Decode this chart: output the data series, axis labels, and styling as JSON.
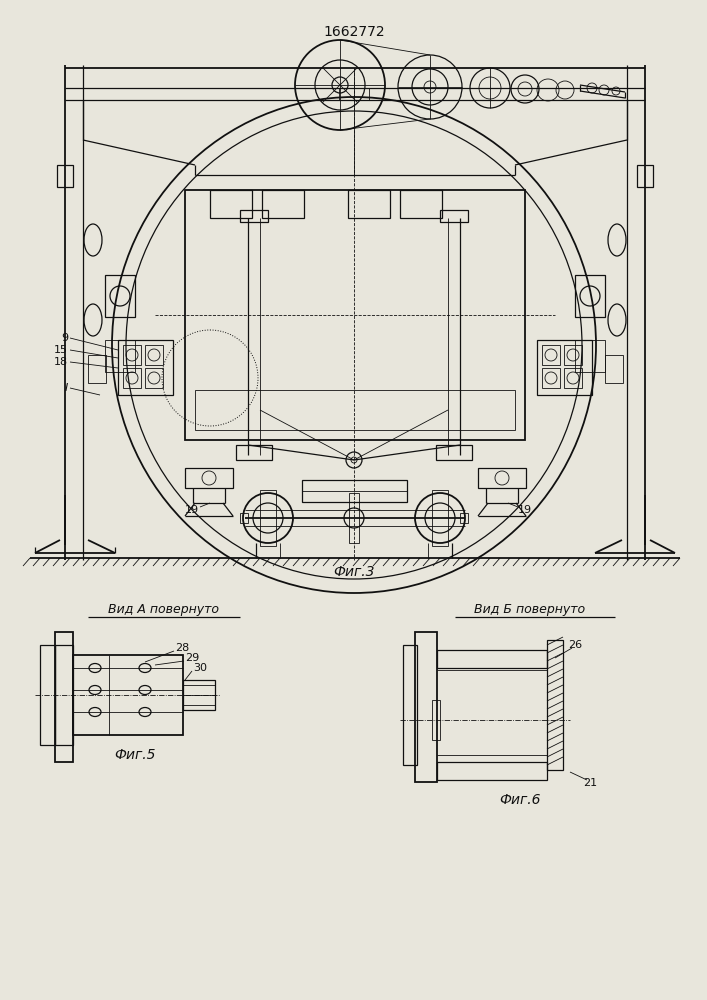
{
  "title": "1662772",
  "bg_color": "#e8e8e0",
  "line_color": "#111111",
  "fig3_label": "Фиг.3",
  "fig5_label": "Фиг.5",
  "fig6_label": "Фиг.6",
  "vid_a_label": "Вид А повернуто",
  "vid_b_label": "Вид Б повернуто"
}
